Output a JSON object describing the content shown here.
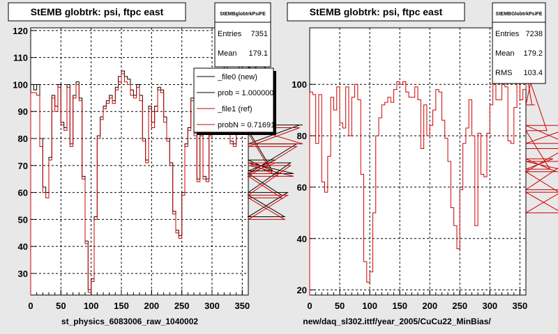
{
  "chart_data": [
    {
      "type": "step",
      "title": "StEMB globtrk: psi, ftpc east",
      "xlabel": "st_physics_6083006_raw_1040002",
      "ylabel": "",
      "xlim": [
        0,
        360
      ],
      "ylim": [
        22,
        121
      ],
      "x_ticks": [
        "0",
        "50",
        "100",
        "150",
        "200",
        "250",
        "300",
        "350"
      ],
      "y_ticks": [
        "30",
        "40",
        "50",
        "60",
        "70",
        "80",
        "90",
        "100",
        "110",
        "120"
      ],
      "grid": true,
      "stats": {
        "name": "StEMBglobtrkPsiFE",
        "entries_label": "Entries",
        "entries": "7351",
        "mean_label": "Mean",
        "mean": "179.1"
      },
      "legend": [
        {
          "label": "_file0 (new)",
          "color": "#000000"
        },
        {
          "label": "prob = 1.000000",
          "color": "#000000"
        },
        {
          "label": "_file1 (ref)",
          "color": "#cc0000"
        },
        {
          "label": "probN = 0.716910",
          "color": "#cc0000"
        }
      ],
      "bin_width": 5,
      "series": [
        {
          "name": "_file0 (new)",
          "color": "#000000",
          "values": [
            100,
            98,
            100,
            80,
            62,
            60,
            73,
            96,
            92,
            100,
            86,
            84,
            100,
            78,
            96,
            101,
            95,
            66,
            42,
            24,
            28,
            51,
            81,
            88,
            92,
            94,
            96,
            94,
            99,
            103,
            105,
            103,
            102,
            98,
            96,
            100,
            96,
            80,
            72,
            92,
            86,
            92,
            99,
            98,
            88,
            80,
            71,
            53,
            46,
            44,
            60,
            78,
            84,
            95,
            82,
            65,
            82,
            66,
            65,
            82,
            93,
            102,
            95,
            95,
            107,
            100,
            79,
            78,
            92,
            108,
            95,
            100,
            106,
            108,
            93,
            93,
            116,
            112,
            108,
            83,
            68,
            72,
            67,
            59,
            51,
            60,
            71,
            67,
            78,
            85,
            85
          ],
          "bins_start": 0
        },
        {
          "name": "_file1 (ref)",
          "color": "#cc0000",
          "values": [
            97,
            97,
            96,
            77,
            60,
            58,
            72,
            95,
            90,
            99,
            85,
            83,
            99,
            77,
            95,
            100,
            94,
            65,
            41,
            23,
            27,
            50,
            80,
            87,
            91,
            93,
            95,
            93,
            98,
            101,
            104,
            101,
            100,
            96,
            95,
            99,
            94,
            79,
            71,
            91,
            84,
            90,
            98,
            97,
            86,
            79,
            70,
            52,
            45,
            43,
            59,
            77,
            83,
            94,
            81,
            64,
            81,
            65,
            64,
            81,
            92,
            100,
            94,
            94,
            105,
            99,
            78,
            77,
            91,
            106,
            94,
            98,
            104,
            106,
            92,
            92,
            114,
            110,
            106,
            82,
            67,
            71,
            66,
            58,
            50,
            59,
            70,
            66,
            77,
            84,
            78
          ],
          "bins_start": 0
        }
      ]
    },
    {
      "type": "step",
      "title": "StEMB globtrk: psi, ftpc east",
      "xlabel": "new/daq_sl302.ittf/year_2005/CuCu22_MinBias/",
      "ylabel": "",
      "xlim": [
        0,
        360
      ],
      "ylim": [
        18,
        122
      ],
      "x_ticks": [
        "0",
        "50",
        "100",
        "150",
        "200",
        "250",
        "300",
        "350"
      ],
      "y_ticks": [
        "20",
        "40",
        "60",
        "80",
        "100"
      ],
      "grid": true,
      "stats": {
        "name": "StEMBGlobtrkPsiFE",
        "entries_label": "Entries",
        "entries": "7238",
        "mean_label": "Mean",
        "mean": "179.2",
        "rms_label": "RMS",
        "rms": "103.4"
      },
      "bin_width": 5,
      "series": [
        {
          "name": "ref",
          "color": "#cc0000",
          "values": [
            97,
            96,
            77,
            96,
            62,
            58,
            72,
            95,
            90,
            99,
            85,
            83,
            99,
            80,
            95,
            100,
            94,
            65,
            31,
            23,
            27,
            50,
            80,
            87,
            92,
            93,
            95,
            93,
            98,
            101,
            100,
            101,
            97,
            95,
            95,
            99,
            94,
            75,
            92,
            80,
            84,
            90,
            98,
            97,
            86,
            79,
            70,
            52,
            45,
            36,
            59,
            77,
            83,
            94,
            80,
            45,
            81,
            65,
            64,
            81,
            92,
            100,
            94,
            94,
            105,
            99,
            78,
            77,
            91,
            106,
            94,
            98,
            104,
            106,
            92,
            92,
            114,
            110,
            106,
            82,
            67,
            71,
            66,
            58,
            50,
            59,
            70,
            66,
            77,
            84,
            75
          ]
        }
      ]
    }
  ]
}
